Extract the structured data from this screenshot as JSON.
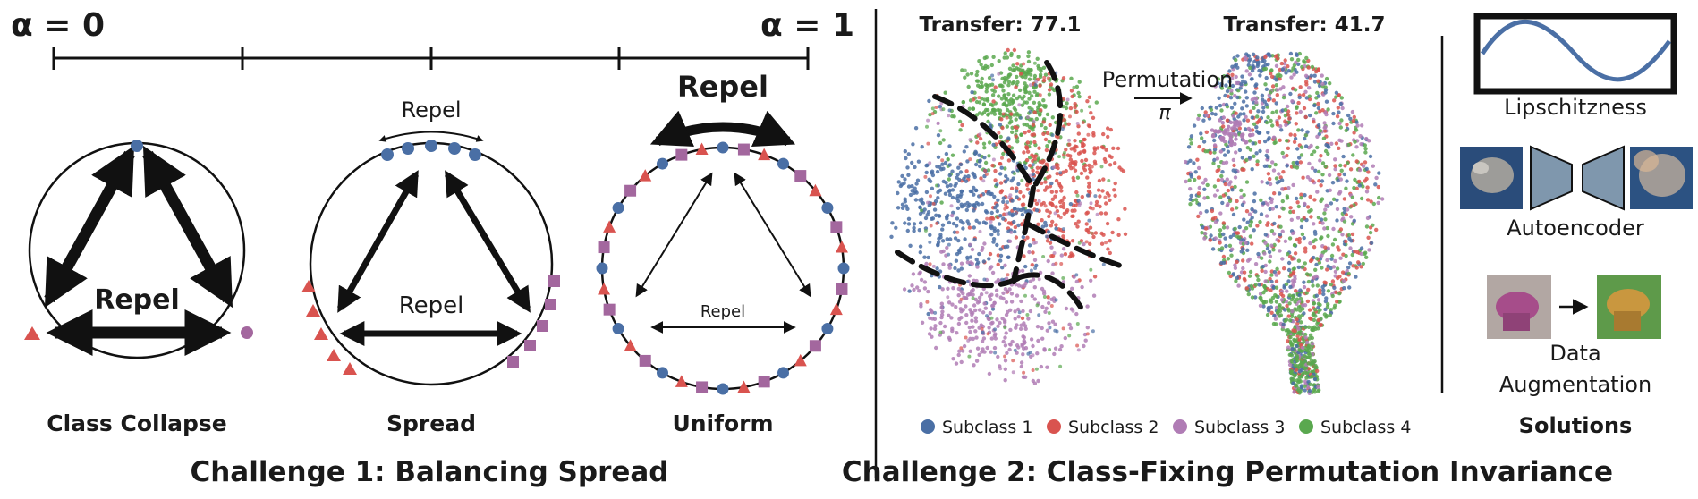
{
  "challenge1": {
    "alpha_left": "α = 0",
    "alpha_right": "α = 1",
    "repel_word": "Repel",
    "panels": [
      {
        "caption": "Class Collapse"
      },
      {
        "caption": "Spread"
      },
      {
        "caption": "Uniform"
      }
    ],
    "title": "Challenge 1: Balancing Spread"
  },
  "challenge2": {
    "transfer_left": "Transfer: 77.1",
    "transfer_right": "Transfer: 41.7",
    "permutation_label": "Permutation",
    "pi_label": "π",
    "legend": [
      {
        "label": "Subclass 1",
        "color": "#4a6fa5"
      },
      {
        "label": "Subclass 2",
        "color": "#d9534f"
      },
      {
        "label": "Subclass 3",
        "color": "#b07cb5"
      },
      {
        "label": "Subclass 4",
        "color": "#5aa84f"
      }
    ],
    "title": "Challenge 2: Class-Fixing Permutation Invariance"
  },
  "solutions": {
    "lipschitzness": "Lipschitzness",
    "autoencoder": "Autoencoder",
    "data_line1": "Data",
    "data_line2": "Augmentation",
    "heading": "Solutions"
  },
  "colors": {
    "blue": "#4a6fa5",
    "red": "#d9534f",
    "purple": "#a3679e",
    "green": "#5aa84f",
    "slate": "#7f97ad"
  }
}
